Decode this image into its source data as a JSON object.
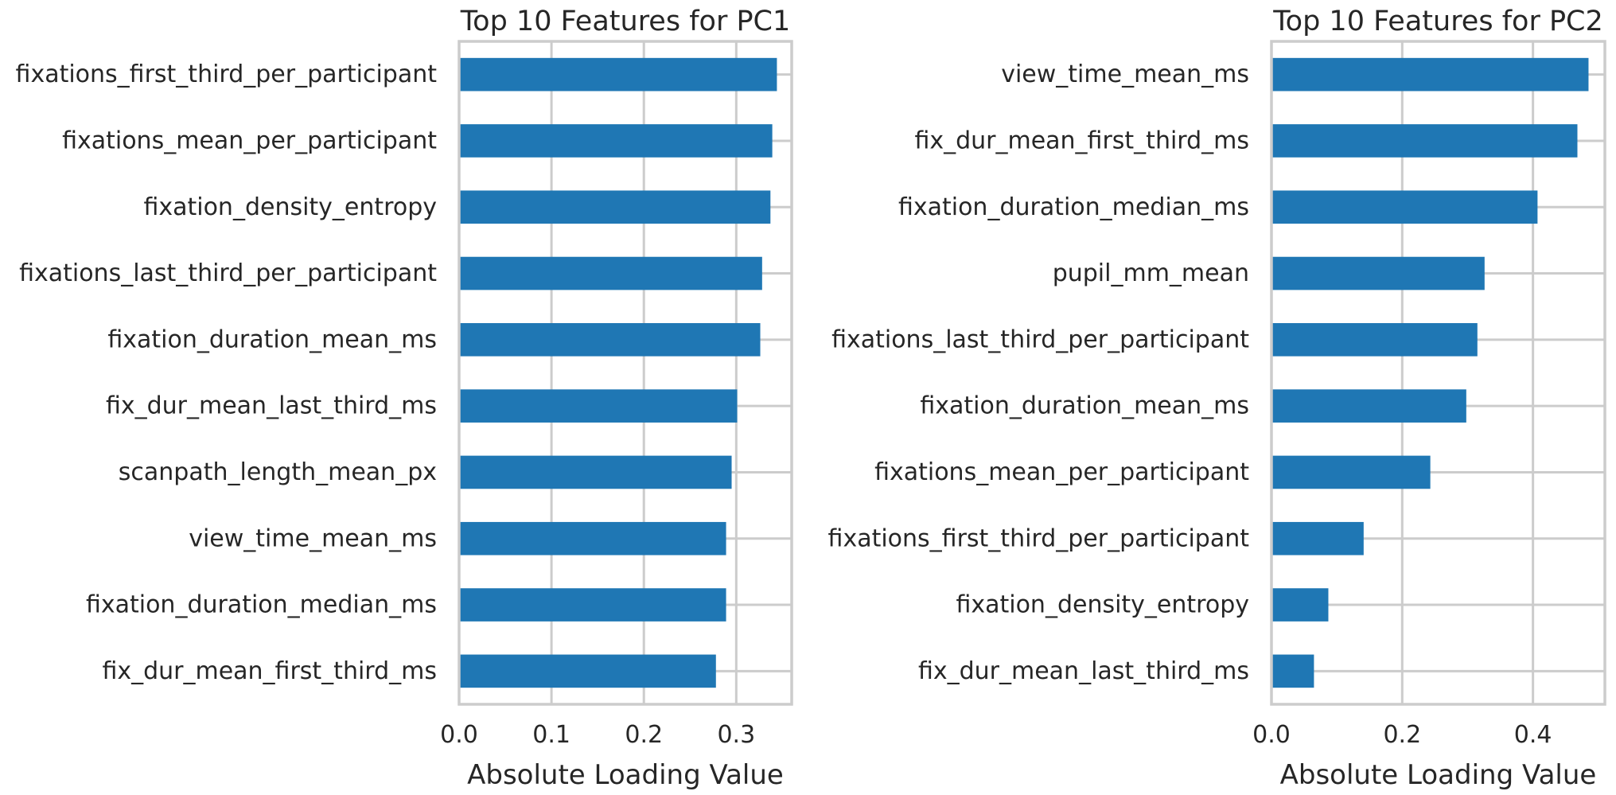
{
  "chart_data": [
    {
      "type": "bar",
      "orientation": "horizontal",
      "title": "Top 10 Features for PC1",
      "xlabel": "Absolute Loading Value",
      "ylabel": "",
      "xlim": [
        0,
        0.36
      ],
      "xticks": [
        0.0,
        0.1,
        0.2,
        0.3
      ],
      "xtick_labels": [
        "0.0",
        "0.1",
        "0.2",
        "0.3"
      ],
      "grid": true,
      "bar_color": "#1f77b4",
      "categories": [
        "fixations_first_third_per_participant",
        "fixations_mean_per_participant",
        "fixation_density_entropy",
        "fixations_last_third_per_participant",
        "fixation_duration_mean_ms",
        "fix_dur_mean_last_third_ms",
        "scanpath_length_mean_px",
        "view_time_mean_ms",
        "fixation_duration_median_ms",
        "fix_dur_mean_first_third_ms"
      ],
      "values": [
        0.344,
        0.339,
        0.337,
        0.328,
        0.326,
        0.301,
        0.295,
        0.289,
        0.289,
        0.278
      ]
    },
    {
      "type": "bar",
      "orientation": "horizontal",
      "title": "Top 10 Features for PC2",
      "xlabel": "Absolute Loading Value",
      "ylabel": "",
      "xlim": [
        0,
        0.51
      ],
      "xticks": [
        0.0,
        0.2,
        0.4
      ],
      "xtick_labels": [
        "0.0",
        "0.2",
        "0.4"
      ],
      "grid": true,
      "bar_color": "#1f77b4",
      "categories": [
        "view_time_mean_ms",
        "fix_dur_mean_first_third_ms",
        "fixation_duration_median_ms",
        "pupil_mm_mean",
        "fixations_last_third_per_participant",
        "fixation_duration_mean_ms",
        "fixations_mean_per_participant",
        "fixations_first_third_per_participant",
        "fixation_density_entropy",
        "fix_dur_mean_last_third_ms"
      ],
      "values": [
        0.485,
        0.468,
        0.407,
        0.326,
        0.315,
        0.298,
        0.243,
        0.141,
        0.087,
        0.065
      ]
    }
  ]
}
